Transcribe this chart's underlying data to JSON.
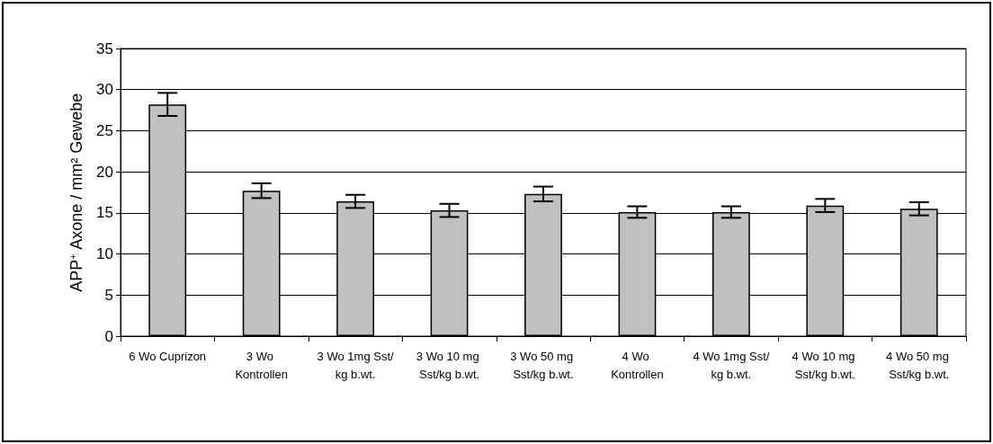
{
  "chart_data": {
    "type": "bar",
    "ylabel": "APP$^{+}$ Axone / mm² Gewebe",
    "categories": [
      "6 Wo Cuprizon",
      "3 Wo Kontrollen",
      "3 Wo 1mg Sst/kg b.wt.",
      "3 Wo 10 mg Sst/kg b.wt.",
      "3 Wo 50 mg Sst/kg b.wt.",
      "4 Wo Kontrollen",
      "4 Wo 1mg Sst/kg b.wt.",
      "4 Wo 10 mg Sst/kg b.wt.",
      "4 Wo 50 mg Sst/kg b.wt."
    ],
    "values": [
      28.2,
      17.7,
      16.4,
      15.3,
      17.3,
      15.1,
      15.1,
      15.9,
      15.5
    ],
    "errors": [
      1.4,
      0.9,
      0.8,
      0.8,
      0.9,
      0.7,
      0.7,
      0.8,
      0.8
    ],
    "color": "#c0c0c0",
    "ylim": [
      0,
      35
    ],
    "yticks": [
      0,
      5,
      10,
      15,
      20,
      25,
      30,
      35
    ],
    "grid": "y"
  }
}
